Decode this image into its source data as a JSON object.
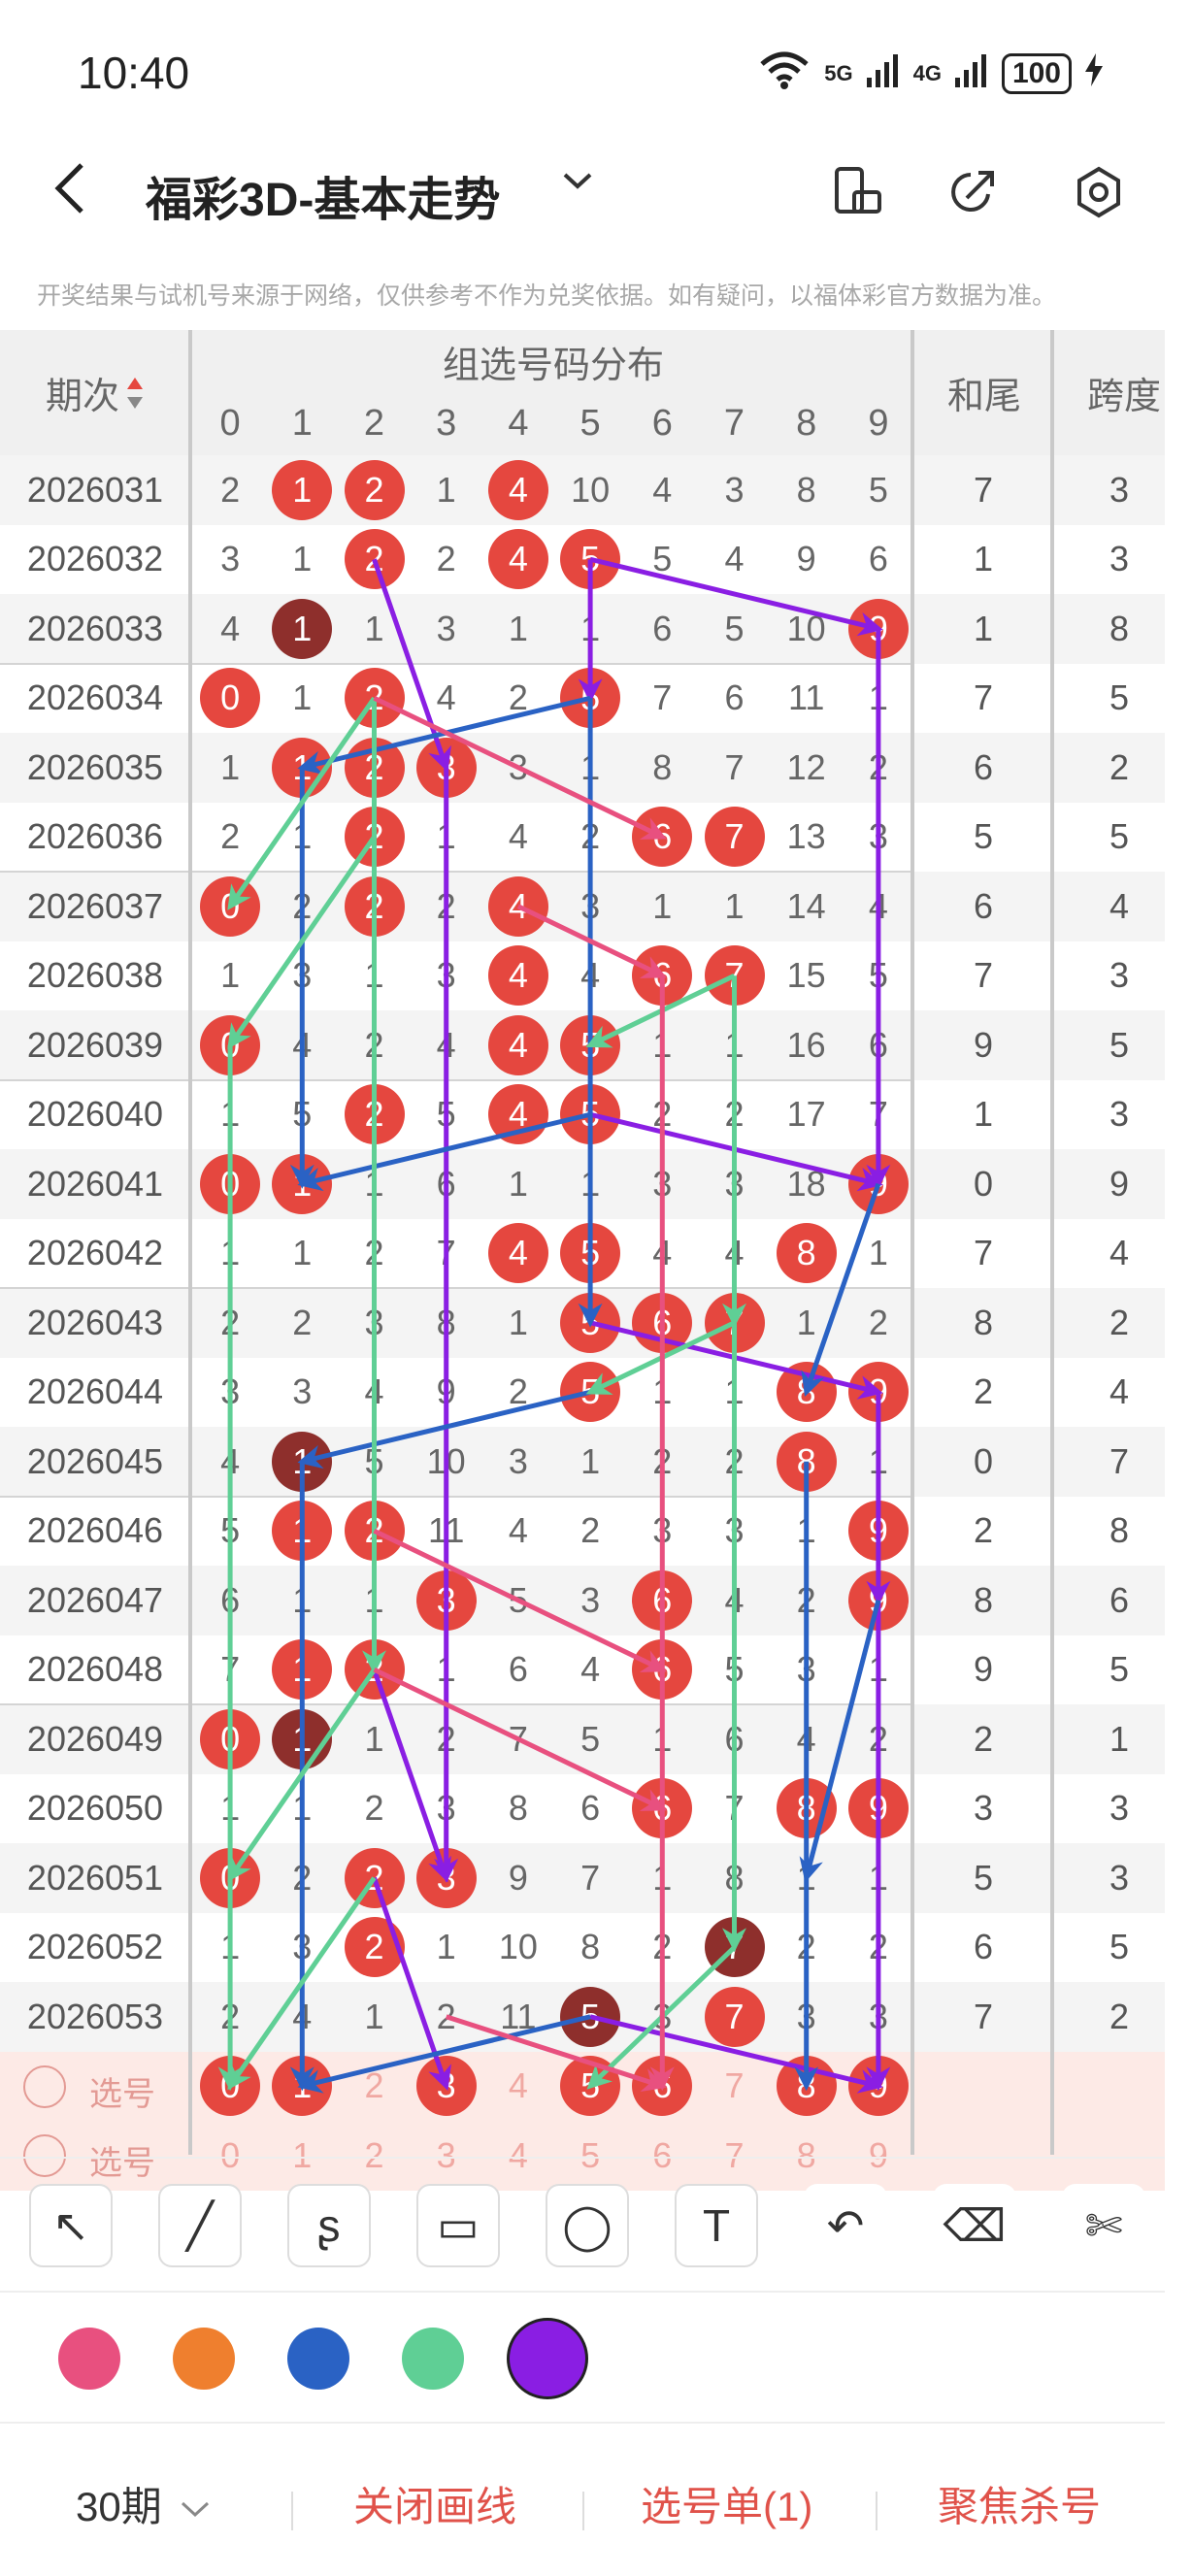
{
  "status_bar": {
    "time": "10:40",
    "net1": "5G",
    "net2": "4G",
    "battery": "100"
  },
  "header": {
    "title": "福彩3D-基本走势",
    "caret": "⌄"
  },
  "notice": "开奖结果与试机号来源于网络，仅供参考不作为兑奖依据。如有疑问，以福体彩官方数据为准。",
  "table": {
    "col_period": "期次",
    "group_title": "组选号码分布",
    "digits": [
      "0",
      "1",
      "2",
      "3",
      "4",
      "5",
      "6",
      "7",
      "8",
      "9"
    ],
    "col_he": "和尾",
    "col_kua": "跨度",
    "rows": [
      {
        "period": "2026031",
        "cells": [
          "2",
          "1",
          "2",
          "1",
          "4",
          "10",
          "4",
          "3",
          "8",
          "5"
        ],
        "balls": [
          1,
          2,
          4
        ],
        "dark": [],
        "he": "7",
        "kua": "3"
      },
      {
        "period": "2026032",
        "cells": [
          "3",
          "1",
          "2",
          "2",
          "4",
          "5",
          "5",
          "4",
          "9",
          "6"
        ],
        "balls": [
          2,
          4,
          5
        ],
        "dark": [],
        "he": "1",
        "kua": "3"
      },
      {
        "period": "2026033",
        "cells": [
          "4",
          "1",
          "1",
          "3",
          "1",
          "1",
          "6",
          "5",
          "10",
          "9"
        ],
        "balls": [
          1,
          9
        ],
        "dark": [
          1
        ],
        "he": "1",
        "kua": "8"
      },
      {
        "period": "2026034",
        "cells": [
          "0",
          "1",
          "2",
          "4",
          "2",
          "5",
          "7",
          "6",
          "11",
          "1"
        ],
        "balls": [
          0,
          2,
          5
        ],
        "dark": [],
        "he": "7",
        "kua": "5"
      },
      {
        "period": "2026035",
        "cells": [
          "1",
          "1",
          "2",
          "3",
          "3",
          "1",
          "8",
          "7",
          "12",
          "2"
        ],
        "balls": [
          1,
          2,
          3
        ],
        "dark": [],
        "he": "6",
        "kua": "2"
      },
      {
        "period": "2026036",
        "cells": [
          "2",
          "1",
          "2",
          "1",
          "4",
          "2",
          "6",
          "7",
          "13",
          "3"
        ],
        "balls": [
          2,
          6,
          7
        ],
        "dark": [],
        "he": "5",
        "kua": "5"
      },
      {
        "period": "2026037",
        "cells": [
          "0",
          "2",
          "2",
          "2",
          "4",
          "3",
          "1",
          "1",
          "14",
          "4"
        ],
        "balls": [
          0,
          2,
          4
        ],
        "dark": [],
        "he": "6",
        "kua": "4"
      },
      {
        "period": "2026038",
        "cells": [
          "1",
          "3",
          "1",
          "3",
          "4",
          "4",
          "6",
          "7",
          "15",
          "5"
        ],
        "balls": [
          4,
          6,
          7
        ],
        "dark": [],
        "he": "7",
        "kua": "3"
      },
      {
        "period": "2026039",
        "cells": [
          "0",
          "4",
          "2",
          "4",
          "4",
          "5",
          "1",
          "1",
          "16",
          "6"
        ],
        "balls": [
          0,
          4,
          5
        ],
        "dark": [],
        "he": "9",
        "kua": "5"
      },
      {
        "period": "2026040",
        "cells": [
          "1",
          "5",
          "2",
          "5",
          "4",
          "5",
          "2",
          "2",
          "17",
          "7"
        ],
        "balls": [
          2,
          4,
          5
        ],
        "dark": [],
        "he": "1",
        "kua": "3"
      },
      {
        "period": "2026041",
        "cells": [
          "0",
          "1",
          "1",
          "6",
          "1",
          "1",
          "3",
          "3",
          "18",
          "9"
        ],
        "balls": [
          0,
          1,
          9
        ],
        "dark": [],
        "he": "0",
        "kua": "9"
      },
      {
        "period": "2026042",
        "cells": [
          "1",
          "1",
          "2",
          "7",
          "4",
          "5",
          "4",
          "4",
          "8",
          "1"
        ],
        "balls": [
          4,
          5,
          8
        ],
        "dark": [],
        "he": "7",
        "kua": "4"
      },
      {
        "period": "2026043",
        "cells": [
          "2",
          "2",
          "3",
          "8",
          "1",
          "5",
          "6",
          "7",
          "1",
          "2"
        ],
        "balls": [
          5,
          6,
          7
        ],
        "dark": [],
        "he": "8",
        "kua": "2"
      },
      {
        "period": "2026044",
        "cells": [
          "3",
          "3",
          "4",
          "9",
          "2",
          "5",
          "1",
          "1",
          "8",
          "9"
        ],
        "balls": [
          5,
          8,
          9
        ],
        "dark": [],
        "he": "2",
        "kua": "4"
      },
      {
        "period": "2026045",
        "cells": [
          "4",
          "1",
          "5",
          "10",
          "3",
          "1",
          "2",
          "2",
          "8",
          "1"
        ],
        "balls": [
          1,
          8
        ],
        "dark": [
          1
        ],
        "he": "0",
        "kua": "7"
      },
      {
        "period": "2026046",
        "cells": [
          "5",
          "1",
          "2",
          "11",
          "4",
          "2",
          "3",
          "3",
          "1",
          "9"
        ],
        "balls": [
          1,
          2,
          9
        ],
        "dark": [],
        "he": "2",
        "kua": "8"
      },
      {
        "period": "2026047",
        "cells": [
          "6",
          "1",
          "1",
          "3",
          "5",
          "3",
          "6",
          "4",
          "2",
          "9"
        ],
        "balls": [
          3,
          6,
          9
        ],
        "dark": [],
        "he": "8",
        "kua": "6"
      },
      {
        "period": "2026048",
        "cells": [
          "7",
          "1",
          "2",
          "1",
          "6",
          "4",
          "6",
          "5",
          "3",
          "1"
        ],
        "balls": [
          1,
          2,
          6
        ],
        "dark": [],
        "he": "9",
        "kua": "5"
      },
      {
        "period": "2026049",
        "cells": [
          "0",
          "1",
          "1",
          "2",
          "7",
          "5",
          "1",
          "6",
          "4",
          "2"
        ],
        "balls": [
          0,
          1
        ],
        "dark": [
          1
        ],
        "he": "2",
        "kua": "1"
      },
      {
        "period": "2026050",
        "cells": [
          "1",
          "1",
          "2",
          "3",
          "8",
          "6",
          "6",
          "7",
          "8",
          "9"
        ],
        "balls": [
          6,
          8,
          9
        ],
        "dark": [],
        "he": "3",
        "kua": "3"
      },
      {
        "period": "2026051",
        "cells": [
          "0",
          "2",
          "2",
          "3",
          "9",
          "7",
          "1",
          "8",
          "1",
          "1"
        ],
        "balls": [
          0,
          2,
          3
        ],
        "dark": [],
        "he": "5",
        "kua": "3"
      },
      {
        "period": "2026052",
        "cells": [
          "1",
          "3",
          "2",
          "1",
          "10",
          "8",
          "2",
          "7",
          "2",
          "2"
        ],
        "balls": [
          2,
          7
        ],
        "dark": [
          7
        ],
        "he": "6",
        "kua": "5"
      },
      {
        "period": "2026053",
        "cells": [
          "2",
          "4",
          "1",
          "2",
          "11",
          "5",
          "3",
          "7",
          "3",
          "3"
        ],
        "balls": [
          5,
          7
        ],
        "dark": [
          5
        ],
        "he": "7",
        "kua": "2"
      }
    ],
    "pick_row_1": {
      "label": "选号",
      "cells": [
        "0",
        "1",
        "2",
        "3",
        "4",
        "5",
        "6",
        "7",
        "8",
        "9"
      ],
      "balls": [
        0,
        1,
        3,
        5,
        6,
        8,
        9
      ]
    },
    "pick_row_2": {
      "label": "选号",
      "cells": [
        "0",
        "1",
        "2",
        "3",
        "4",
        "5",
        "6",
        "7",
        "8",
        "9"
      ]
    }
  },
  "tools": [
    "select-arrow",
    "line",
    "curve",
    "rectangle",
    "circle",
    "text",
    "undo",
    "eraser",
    "clear"
  ],
  "tool_glyphs": {
    "select-arrow": "↖",
    "line": "╱",
    "curve": "ʂ",
    "rectangle": "▭",
    "circle": "◯",
    "text": "T",
    "undo": "↶",
    "eraser": "⌫",
    "clear": "✄"
  },
  "colors": [
    "#e8507f",
    "#ef7f2e",
    "#2a62c4",
    "#5fcf95",
    "#8a1ee3"
  ],
  "selected_color": "#8a1ee3",
  "bottom": {
    "periods": "30期",
    "periods_caret": "⌄",
    "close_draw": "关闭画线",
    "pick_list": "选号单(1)",
    "focus_kill": "聚焦杀号"
  }
}
